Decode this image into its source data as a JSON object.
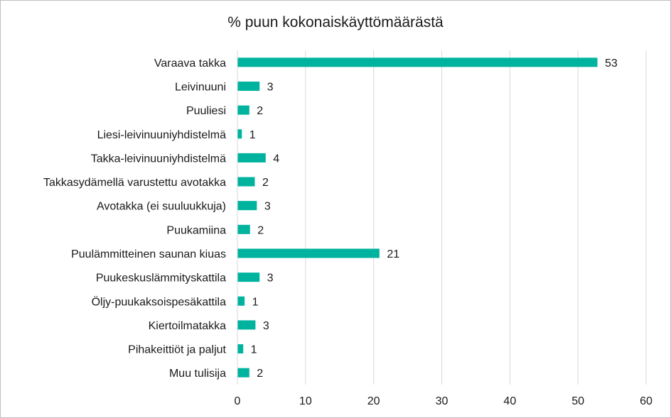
{
  "chart_data": {
    "type": "bar",
    "orientation": "horizontal",
    "title": "% puun kokonaiskäyttömäärästä",
    "categories": [
      "Varaava takka",
      "Leivinuuni",
      "Puuliesi",
      "Liesi-leivinuuniyhdistelmä",
      "Takka-leivinuuniyhdistelmä",
      "Takkasydämellä varustettu avotakka",
      "Avotakka (ei suuluukkuja)",
      "Puukamiina",
      "Puulämmitteinen saunan kiuas",
      "Puukeskuslämmityskattila",
      "Öljy-puukaksoispesäkattila",
      "Kiertoilmatakka",
      "Pihakeittiöt ja paljut",
      "Muu tulisija"
    ],
    "values": [
      52.8,
      3.2,
      1.7,
      0.6,
      4.1,
      2.5,
      2.8,
      1.8,
      20.8,
      3.2,
      1.0,
      2.6,
      0.8,
      1.7
    ],
    "data_labels": [
      "53",
      "3",
      "2",
      "1",
      "4",
      "2",
      "3",
      "2",
      "21",
      "3",
      "1",
      "3",
      "1",
      "2"
    ],
    "xlim": [
      0,
      60
    ],
    "xticks": [
      "0",
      "10",
      "20",
      "30",
      "40",
      "50",
      "60"
    ],
    "xtick_values": [
      0,
      10,
      20,
      30,
      40,
      50,
      60
    ],
    "grid": "vertical",
    "legend": "none",
    "bar_color": "#00b39e"
  }
}
